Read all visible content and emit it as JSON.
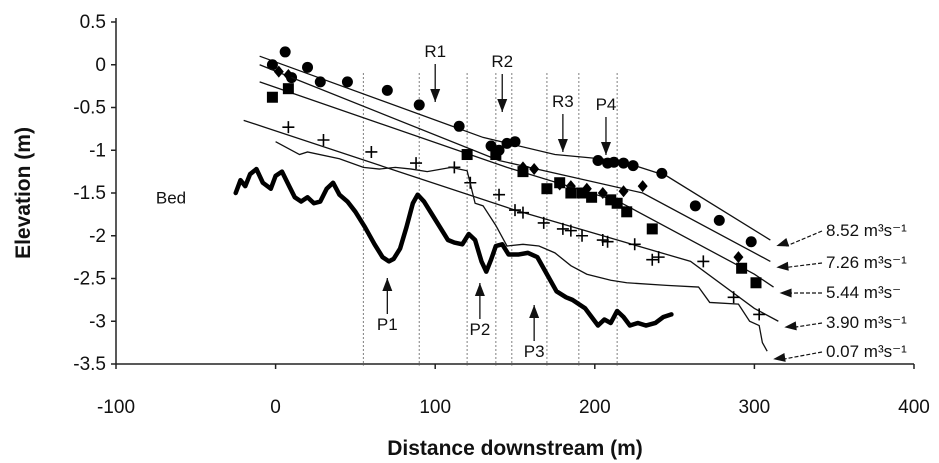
{
  "chart_data": {
    "type": "scatter",
    "title": "",
    "xlabel": "Distance downstream (m)",
    "ylabel": "Elevation (m)",
    "xlim": [
      -100,
      400
    ],
    "ylim": [
      -3.5,
      0.5
    ],
    "xticks": [
      "-100",
      "0",
      "100",
      "200",
      "300",
      "400"
    ],
    "yticks": [
      "0.5",
      "0",
      "-0.5",
      "-1",
      "-1.5",
      "-2",
      "-2.5",
      "-3",
      "-3.5"
    ],
    "grid": false,
    "bed_label": "Bed",
    "bed_profile": [
      [
        -25,
        -1.5
      ],
      [
        -22,
        -1.35
      ],
      [
        -19,
        -1.42
      ],
      [
        -16,
        -1.28
      ],
      [
        -12,
        -1.22
      ],
      [
        -8,
        -1.38
      ],
      [
        -3,
        -1.45
      ],
      [
        0,
        -1.3
      ],
      [
        4,
        -1.25
      ],
      [
        8,
        -1.4
      ],
      [
        12,
        -1.55
      ],
      [
        16,
        -1.6
      ],
      [
        20,
        -1.55
      ],
      [
        24,
        -1.62
      ],
      [
        28,
        -1.6
      ],
      [
        32,
        -1.45
      ],
      [
        36,
        -1.38
      ],
      [
        40,
        -1.52
      ],
      [
        45,
        -1.6
      ],
      [
        50,
        -1.72
      ],
      [
        56,
        -1.9
      ],
      [
        62,
        -2.1
      ],
      [
        67,
        -2.25
      ],
      [
        71,
        -2.3
      ],
      [
        74,
        -2.27
      ],
      [
        78,
        -2.15
      ],
      [
        82,
        -1.9
      ],
      [
        86,
        -1.62
      ],
      [
        89,
        -1.52
      ],
      [
        93,
        -1.6
      ],
      [
        98,
        -1.75
      ],
      [
        103,
        -1.9
      ],
      [
        108,
        -2.05
      ],
      [
        112,
        -2.08
      ],
      [
        117,
        -2.1
      ],
      [
        121,
        -1.98
      ],
      [
        125,
        -2.05
      ],
      [
        129,
        -2.3
      ],
      [
        132,
        -2.42
      ],
      [
        135,
        -2.28
      ],
      [
        138,
        -2.12
      ],
      [
        142,
        -2.1
      ],
      [
        146,
        -2.22
      ],
      [
        152,
        -2.22
      ],
      [
        158,
        -2.2
      ],
      [
        164,
        -2.25
      ],
      [
        170,
        -2.45
      ],
      [
        176,
        -2.65
      ],
      [
        182,
        -2.72
      ],
      [
        186,
        -2.75
      ],
      [
        190,
        -2.8
      ],
      [
        194,
        -2.85
      ],
      [
        198,
        -2.95
      ],
      [
        202,
        -3.05
      ],
      [
        206,
        -2.98
      ],
      [
        210,
        -3.02
      ],
      [
        214,
        -2.88
      ],
      [
        218,
        -2.95
      ],
      [
        222,
        -3.05
      ],
      [
        227,
        -3.02
      ],
      [
        232,
        -3.05
      ],
      [
        238,
        -3.02
      ],
      [
        243,
        -2.95
      ],
      [
        248,
        -2.92
      ]
    ],
    "series": [
      {
        "name": "8.52 m³s⁻¹",
        "marker": "circle",
        "points": [
          [
            -2,
            0
          ],
          [
            6,
            0.15
          ],
          [
            10,
            -0.15
          ],
          [
            20,
            -0.03
          ],
          [
            28,
            -0.2
          ],
          [
            45,
            -0.2
          ],
          [
            70,
            -0.3
          ],
          [
            90,
            -0.47
          ],
          [
            115,
            -0.72
          ],
          [
            135,
            -0.95
          ],
          [
            140,
            -1.0
          ],
          [
            145,
            -0.92
          ],
          [
            150,
            -0.9
          ],
          [
            202,
            -1.12
          ],
          [
            208,
            -1.15
          ],
          [
            212,
            -1.14
          ],
          [
            218,
            -1.15
          ],
          [
            224,
            -1.18
          ],
          [
            242,
            -1.27
          ],
          [
            263,
            -1.65
          ],
          [
            278,
            -1.82
          ],
          [
            298,
            -2.07
          ]
        ],
        "line": [
          [
            -10,
            0.1
          ],
          [
            130,
            -0.85
          ],
          [
            175,
            -1.05
          ],
          [
            215,
            -1.12
          ],
          [
            245,
            -1.3
          ],
          [
            310,
            -2.05
          ]
        ]
      },
      {
        "name": "7.26 m³s⁻¹",
        "marker": "diamond",
        "points": [
          [
            2,
            -0.08
          ],
          [
            8,
            -0.12
          ],
          [
            155,
            -1.2
          ],
          [
            162,
            -1.22
          ],
          [
            178,
            -1.4
          ],
          [
            185,
            -1.42
          ],
          [
            195,
            -1.45
          ],
          [
            205,
            -1.5
          ],
          [
            218,
            -1.48
          ],
          [
            230,
            -1.42
          ],
          [
            290,
            -2.25
          ]
        ],
        "line": [
          [
            -10,
            0
          ],
          [
            140,
            -1.12
          ],
          [
            230,
            -1.5
          ],
          [
            310,
            -2.3
          ]
        ]
      },
      {
        "name": "5.44 m³s⁻",
        "marker": "square",
        "points": [
          [
            -2,
            -0.38
          ],
          [
            8,
            -0.28
          ],
          [
            120,
            -1.05
          ],
          [
            138,
            -1.05
          ],
          [
            155,
            -1.25
          ],
          [
            170,
            -1.45
          ],
          [
            178,
            -1.38
          ],
          [
            185,
            -1.5
          ],
          [
            192,
            -1.5
          ],
          [
            198,
            -1.55
          ],
          [
            210,
            -1.58
          ],
          [
            214,
            -1.62
          ],
          [
            220,
            -1.72
          ],
          [
            236,
            -1.92
          ],
          [
            292,
            -2.38
          ],
          [
            301,
            -2.55
          ]
        ],
        "line": [
          [
            -10,
            -0.2
          ],
          [
            145,
            -1.2
          ],
          [
            215,
            -1.6
          ],
          [
            300,
            -2.45
          ],
          [
            312,
            -2.6
          ]
        ]
      },
      {
        "name": "3.90 m³s⁻¹",
        "marker": "plus",
        "points": [
          [
            8,
            -0.73
          ],
          [
            30,
            -0.88
          ],
          [
            60,
            -1.02
          ],
          [
            88,
            -1.15
          ],
          [
            112,
            -1.2
          ],
          [
            122,
            -1.38
          ],
          [
            140,
            -1.52
          ],
          [
            150,
            -1.7
          ],
          [
            155,
            -1.73
          ],
          [
            168,
            -1.85
          ],
          [
            180,
            -1.92
          ],
          [
            185,
            -1.94
          ],
          [
            192,
            -2.0
          ],
          [
            205,
            -2.05
          ],
          [
            208,
            -2.07
          ],
          [
            225,
            -2.1
          ],
          [
            236,
            -2.28
          ],
          [
            240,
            -2.25
          ],
          [
            268,
            -2.3
          ],
          [
            287,
            -2.72
          ],
          [
            303,
            -2.92
          ]
        ],
        "line": [
          [
            -20,
            -0.65
          ],
          [
            150,
            -1.7
          ],
          [
            260,
            -2.3
          ],
          [
            300,
            -2.85
          ],
          [
            315,
            -3.0
          ]
        ]
      },
      {
        "name": "0.07 m³s⁻¹",
        "marker": "none",
        "points": [],
        "line": [
          [
            0,
            -0.9
          ],
          [
            15,
            -1.05
          ],
          [
            20,
            -1.02
          ],
          [
            40,
            -1.1
          ],
          [
            55,
            -1.2
          ],
          [
            65,
            -1.22
          ],
          [
            75,
            -1.2
          ],
          [
            85,
            -1.22
          ],
          [
            95,
            -1.25
          ],
          [
            110,
            -1.2
          ],
          [
            120,
            -1.24
          ],
          [
            125,
            -1.62
          ],
          [
            130,
            -1.65
          ],
          [
            138,
            -1.88
          ],
          [
            145,
            -2.12
          ],
          [
            155,
            -2.1
          ],
          [
            165,
            -2.12
          ],
          [
            175,
            -2.2
          ],
          [
            185,
            -2.35
          ],
          [
            195,
            -2.45
          ],
          [
            210,
            -2.52
          ],
          [
            220,
            -2.55
          ],
          [
            245,
            -2.58
          ],
          [
            265,
            -2.6
          ],
          [
            272,
            -2.78
          ],
          [
            290,
            -2.8
          ],
          [
            297,
            -3.0
          ],
          [
            303,
            -3.05
          ],
          [
            305,
            -3.25
          ],
          [
            308,
            -3.35
          ]
        ]
      }
    ],
    "reaches": [
      {
        "label": "R1",
        "x": 100
      },
      {
        "label": "R2",
        "x": 142
      },
      {
        "label": "R3",
        "x": 180
      },
      {
        "label": "P4",
        "x": 207
      }
    ],
    "pools": [
      {
        "label": "P1",
        "x": 70
      },
      {
        "label": "P2",
        "x": 128
      },
      {
        "label": "P3",
        "x": 162
      }
    ],
    "section_lines_x": [
      55,
      90,
      120,
      138,
      148,
      170,
      190,
      214
    ],
    "legend_placement": "right"
  }
}
